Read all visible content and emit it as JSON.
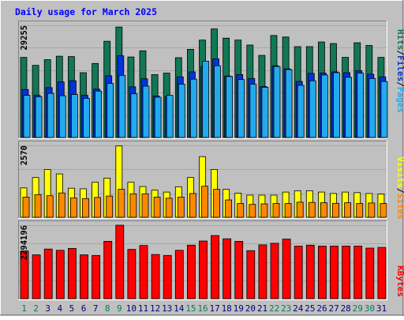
{
  "chart_data": {
    "type": "bar",
    "title": "Daily usage for March 2025",
    "days": [
      "1",
      "2",
      "3",
      "4",
      "5",
      "6",
      "7",
      "8",
      "9",
      "10",
      "11",
      "12",
      "13",
      "14",
      "15",
      "16",
      "17",
      "18",
      "19",
      "20",
      "21",
      "22",
      "23",
      "24",
      "25",
      "26",
      "27",
      "28",
      "29",
      "30",
      "31"
    ],
    "weekend_days": [
      "1",
      "2",
      "8",
      "9",
      "15",
      "16",
      "22",
      "23",
      "29",
      "30"
    ],
    "panels": [
      {
        "id": "top",
        "max_label": "29255",
        "max": 29255,
        "series": [
          {
            "name": "Hits",
            "color": "#117755",
            "values": [
              20900,
              18800,
              20300,
              21200,
              21100,
              16900,
              19300,
              25100,
              28800,
              21000,
              22600,
              16400,
              16800,
              20800,
              23000,
              25400,
              28300,
              25900,
              25400,
              24100,
              21400,
              26600,
              26200,
              23700,
              23700,
              24900,
              24500,
              20900,
              24700,
              24000,
              20900
            ]
          },
          {
            "name": "Files",
            "color": "#0033dd",
            "values": [
              12500,
              11000,
              13000,
              14500,
              14800,
              11000,
              12600,
              16100,
              21300,
              13200,
              15300,
              10800,
              10600,
              15800,
              17100,
              18400,
              20500,
              16000,
              16400,
              15400,
              13300,
              18700,
              17900,
              14600,
              16700,
              16800,
              17100,
              16900,
              17400,
              16500,
              15800
            ]
          },
          {
            "name": "Pages",
            "color": "#22aaee",
            "values": [
              11000,
              10600,
              11500,
              10900,
              11200,
              10200,
              12100,
              14100,
              16200,
              11400,
              13400,
              10500,
              11000,
              13900,
              15200,
              19900,
              18700,
              15900,
              15100,
              13900,
              13100,
              18500,
              17700,
              13600,
              14800,
              16300,
              16900,
              15700,
              16800,
              15400,
              14600
            ]
          }
        ]
      },
      {
        "id": "middle",
        "max_label": "2570",
        "max": 2570,
        "series": [
          {
            "name": "Visits",
            "color": "#ffff00",
            "values": [
              1050,
              1420,
              1710,
              1550,
              1040,
              1020,
              1250,
              1400,
              2550,
              1250,
              1100,
              970,
              900,
              1090,
              1420,
              2170,
              1710,
              1000,
              860,
              790,
              790,
              790,
              900,
              950,
              950,
              900,
              850,
              900,
              880,
              850,
              830
            ]
          },
          {
            "name": "Sites",
            "color": "#ff8800",
            "values": [
              720,
              810,
              770,
              870,
              690,
              670,
              710,
              760,
              1000,
              840,
              840,
              720,
              680,
              720,
              850,
              1110,
              1000,
              620,
              490,
              460,
              480,
              490,
              490,
              540,
              530,
              520,
              500,
              520,
              490,
              510,
              490
            ]
          }
        ]
      },
      {
        "id": "bottom",
        "max_label": "2294196",
        "max": 2294196,
        "series": [
          {
            "name": "KBytes",
            "color": "#ff0000",
            "values": [
              1490000,
              1370000,
              1550000,
              1510000,
              1570000,
              1370000,
              1350000,
              1790000,
              2294196,
              1540000,
              1660000,
              1380000,
              1350000,
              1510000,
              1670000,
              1800000,
              1970000,
              1870000,
              1790000,
              1500000,
              1680000,
              1730000,
              1860000,
              1640000,
              1670000,
              1640000,
              1640000,
              1640000,
              1640000,
              1580000,
              1600000
            ]
          }
        ]
      }
    ],
    "right_legend_top": [
      {
        "text": "Hits",
        "color": "#117755"
      },
      {
        "text": "/",
        "color": "#000000"
      },
      {
        "text": "Files",
        "color": "#0033dd"
      },
      {
        "text": "/",
        "color": "#000000"
      },
      {
        "text": "Pages",
        "color": "#22aaee"
      }
    ],
    "right_legend_middle": [
      {
        "text": "Visits",
        "color": "#ffff00"
      },
      {
        "text": "/",
        "color": "#000000"
      },
      {
        "text": "Sites",
        "color": "#ff8800"
      }
    ],
    "right_legend_bottom": [
      {
        "text": "KBytes",
        "color": "#ff0000"
      }
    ],
    "colors": {
      "background": "#c0c0c0",
      "title": "#0000ff",
      "weekday_label": "#000080",
      "weekend_label": "#00805c",
      "gridline": "#a8a8a8"
    }
  }
}
